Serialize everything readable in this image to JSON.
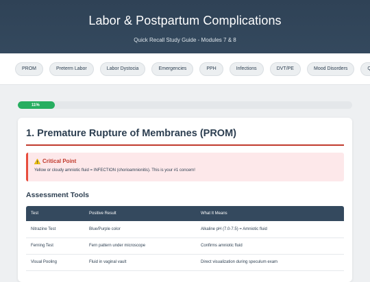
{
  "header": {
    "title": "Labor & Postpartum Complications",
    "subtitle": "Quick Recall Study Guide - Modules 7 & 8"
  },
  "nav": {
    "items": [
      "PROM",
      "Preterm Labor",
      "Labor Dystocia",
      "Emergencies",
      "PPH",
      "Infections",
      "DVT/PE",
      "Mood Disorders",
      "Quiz"
    ]
  },
  "progress": {
    "label": "11%",
    "value": 0.11,
    "color": "#27ae60"
  },
  "section": {
    "title": "1. Premature Rupture of Membranes (PROM)",
    "alert": {
      "icon": "warning-icon",
      "title": "Critical Point",
      "text": "Yellow or cloudy amniotic fluid = INFECTION (chorioamnionitis). This is your #1 concern!"
    },
    "subheading": "Assessment Tools",
    "table": {
      "headers": [
        "Test",
        "Positive Result",
        "What It Means"
      ],
      "rows": [
        [
          "Nitrazine Test",
          "Blue/Purple color",
          "Alkaline pH (7.0-7.5) = Amniotic fluid"
        ],
        [
          "Ferning Test",
          "Fern pattern under microscope",
          "Confirms amniotic fluid"
        ],
        [
          "Visual Pooling",
          "Fluid in vaginal vault",
          "Direct visualization during speculum exam"
        ]
      ]
    }
  },
  "colors": {
    "header_bg": "#34495e",
    "accent_red": "#c0392b",
    "alert_bg": "#fde8ea",
    "progress_green": "#27ae60"
  }
}
